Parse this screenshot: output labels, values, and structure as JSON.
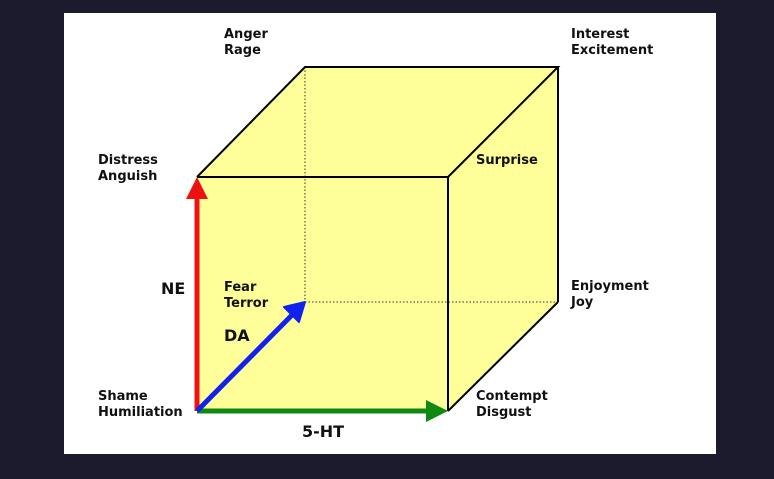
{
  "colors": {
    "background": "#1c1b2d",
    "panel": "#ffffff",
    "cube_fill": "#ffff99",
    "edge": "#000000",
    "ne_arrow": "#ee1111",
    "da_arrow": "#1122ee",
    "ht_arrow": "#118811"
  },
  "corners": {
    "anger_rage": {
      "line1": "Anger",
      "line2": "Rage"
    },
    "interest_excitement": {
      "line1": "Interest",
      "line2": "Excitement"
    },
    "distress_anguish": {
      "line1": "Distress",
      "line2": "Anguish"
    },
    "surprise": {
      "line1": "Surprise"
    },
    "fear_terror": {
      "line1": "Fear",
      "line2": "Terror"
    },
    "enjoyment_joy": {
      "line1": "Enjoyment",
      "line2": "Joy"
    },
    "shame_humiliation": {
      "line1": "Shame",
      "line2": "Humiliation"
    },
    "contempt_disgust": {
      "line1": "Contempt",
      "line2": "Disgust"
    }
  },
  "axes": {
    "ne": "NE",
    "da": "DA",
    "ht": "5-HT"
  }
}
